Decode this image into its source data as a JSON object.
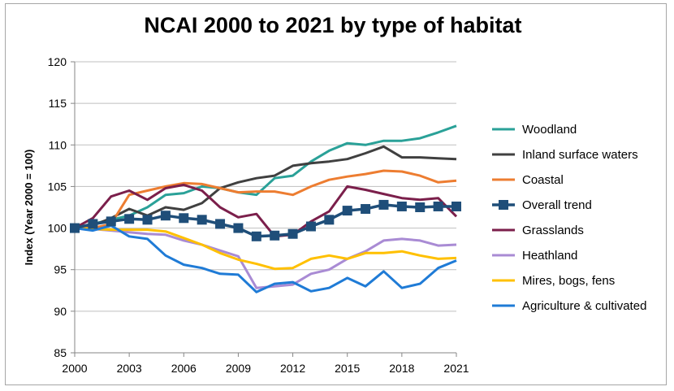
{
  "chart_data": {
    "type": "line",
    "title": "NCAI 2000 to 2021 by type of habitat",
    "xlabel": "",
    "ylabel": "Index (Year 2000 = 100)",
    "ylim": [
      85,
      120
    ],
    "yticks": [
      85,
      90,
      95,
      100,
      105,
      110,
      115,
      120
    ],
    "xlim": [
      2000,
      2021
    ],
    "xticks": [
      2000,
      2003,
      2006,
      2009,
      2012,
      2015,
      2018,
      2021
    ],
    "x": [
      2000,
      2001,
      2002,
      2003,
      2004,
      2005,
      2006,
      2007,
      2008,
      2009,
      2010,
      2011,
      2012,
      2013,
      2014,
      2015,
      2016,
      2017,
      2018,
      2019,
      2020,
      2021
    ],
    "legend_position": "right",
    "series": [
      {
        "name": "Woodland",
        "color": "#2aa198",
        "values": [
          100,
          100.5,
          101.0,
          101.5,
          102.5,
          104.0,
          104.2,
          105.0,
          104.8,
          104.3,
          104.0,
          106.0,
          106.3,
          108.0,
          109.3,
          110.2,
          110.0,
          110.5,
          110.5,
          110.8,
          111.5,
          112.3
        ]
      },
      {
        "name": "Inland surface waters",
        "color": "#404040",
        "values": [
          100,
          100.3,
          101.2,
          102.3,
          101.5,
          102.5,
          102.2,
          103.0,
          104.8,
          105.5,
          106.0,
          106.3,
          107.5,
          107.8,
          108.0,
          108.3,
          109.0,
          109.8,
          108.5,
          108.5,
          108.4,
          108.3
        ]
      },
      {
        "name": "Coastal",
        "color": "#ed7d31",
        "values": [
          100,
          100.0,
          100.5,
          104.0,
          104.5,
          105.0,
          105.4,
          105.3,
          104.8,
          104.3,
          104.4,
          104.4,
          104.0,
          105.0,
          105.8,
          106.2,
          106.5,
          106.9,
          106.8,
          106.3,
          105.5,
          105.7
        ]
      },
      {
        "name": "Overall trend",
        "color": "#1f4e79",
        "marker": "square",
        "values": [
          100,
          100.5,
          100.8,
          101.1,
          101.0,
          101.5,
          101.2,
          101.0,
          100.5,
          100.0,
          99.0,
          99.1,
          99.3,
          100.2,
          101.0,
          102.1,
          102.3,
          102.8,
          102.6,
          102.5,
          102.6,
          102.6
        ]
      },
      {
        "name": "Grasslands",
        "color": "#7b1f4b",
        "values": [
          100,
          101.2,
          103.8,
          104.5,
          103.4,
          104.8,
          105.2,
          104.5,
          102.5,
          101.3,
          101.7,
          99.0,
          99.2,
          100.8,
          102.0,
          105.0,
          104.6,
          104.1,
          103.6,
          103.4,
          103.6,
          101.4
        ]
      },
      {
        "name": "Heathland",
        "color": "#a98bd4",
        "values": [
          100,
          99.9,
          99.7,
          99.5,
          99.3,
          99.2,
          98.5,
          98.0,
          97.3,
          96.6,
          92.8,
          93.0,
          93.2,
          94.5,
          95.0,
          96.3,
          97.2,
          98.5,
          98.7,
          98.5,
          97.9,
          98.0
        ]
      },
      {
        "name": "Mires, bogs, fens",
        "color": "#ffc000",
        "values": [
          100,
          99.9,
          99.8,
          99.8,
          99.8,
          99.6,
          98.8,
          98.0,
          97.0,
          96.2,
          95.7,
          95.1,
          95.2,
          96.3,
          96.7,
          96.3,
          97.0,
          97.0,
          97.2,
          96.7,
          96.3,
          96.4
        ]
      },
      {
        "name": "Agriculture & cultivated",
        "color": "#1f7bd6",
        "values": [
          100,
          99.7,
          100.3,
          99.0,
          98.7,
          96.7,
          95.6,
          95.2,
          94.5,
          94.4,
          92.3,
          93.3,
          93.5,
          92.4,
          92.8,
          94.0,
          93.0,
          94.8,
          92.8,
          93.3,
          95.2,
          96.1
        ]
      }
    ]
  }
}
